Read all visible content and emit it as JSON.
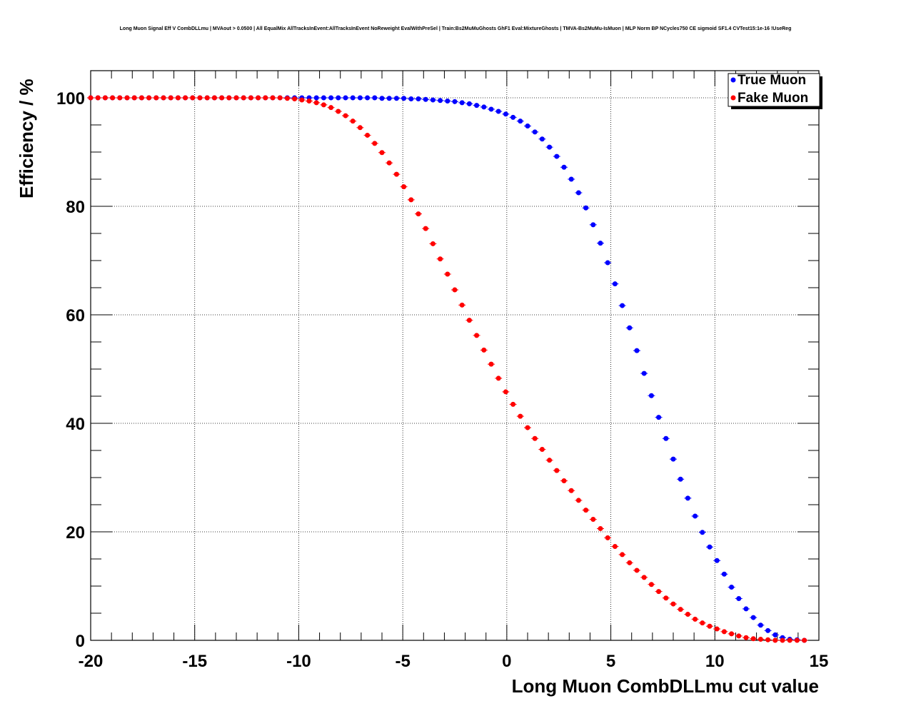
{
  "chart_data": {
    "type": "scatter",
    "title": "Long Muon Signal Eff V CombDLLmu | MVAout > 0.0500 | All EqualMix AllTracksInEvent:AllTracksInEvent NoReweight EvalWithPreSel | Train:Bs2MuMuGhosts GhF1 Eval:MixtureGhosts | TMVA-Bs2MuMu-IsMuon | MLP Norm BP NCycles750 CE sigmoid SF1.4 CVTest15:1e-16 !UseReg",
    "xlabel": "Long Muon CombDLLmu cut value",
    "ylabel": "Efficiency / %",
    "xlim": [
      -20,
      15
    ],
    "ylim": [
      0,
      105
    ],
    "xticks": [
      "-20",
      "-15",
      "-10",
      "-5",
      "0",
      "5",
      "10",
      "15"
    ],
    "yticks": [
      "0",
      "20",
      "40",
      "60",
      "80",
      "100"
    ],
    "grid": true,
    "legend_position": "top-right",
    "series": [
      {
        "name": "True Muon",
        "color": "#0000ff",
        "x": [
          -20.0,
          -19.65,
          -19.3,
          -18.95,
          -18.6,
          -18.25,
          -17.9,
          -17.55,
          -17.2,
          -16.85,
          -16.5,
          -16.15,
          -15.8,
          -15.45,
          -15.1,
          -14.75,
          -14.4,
          -14.05,
          -13.7,
          -13.35,
          -13.0,
          -12.65,
          -12.3,
          -11.95,
          -11.6,
          -11.25,
          -10.9,
          -10.55,
          -10.2,
          -9.85,
          -9.5,
          -9.15,
          -8.8,
          -8.45,
          -8.1,
          -7.75,
          -7.4,
          -7.05,
          -6.7,
          -6.35,
          -6.0,
          -5.65,
          -5.3,
          -4.95,
          -4.6,
          -4.25,
          -3.9,
          -3.55,
          -3.2,
          -2.85,
          -2.5,
          -2.15,
          -1.8,
          -1.45,
          -1.1,
          -0.75,
          -0.4,
          -0.05,
          0.3,
          0.65,
          1.0,
          1.35,
          1.7,
          2.05,
          2.4,
          2.75,
          3.1,
          3.45,
          3.8,
          4.15,
          4.5,
          4.85,
          5.2,
          5.55,
          5.9,
          6.25,
          6.6,
          6.95,
          7.3,
          7.65,
          8.0,
          8.35,
          8.7,
          9.05,
          9.4,
          9.75,
          10.1,
          10.45,
          10.8,
          11.15,
          11.5,
          11.85,
          12.2,
          12.55,
          12.9,
          13.25,
          13.6,
          13.95,
          14.3
        ],
        "y": [
          100.0,
          100.0,
          100.0,
          100.0,
          100.0,
          100.0,
          100.0,
          100.0,
          100.0,
          100.0,
          100.0,
          100.0,
          100.0,
          100.0,
          100.0,
          100.0,
          100.0,
          100.0,
          100.0,
          100.0,
          100.0,
          100.0,
          100.0,
          100.0,
          100.0,
          100.0,
          100.0,
          100.0,
          100.0,
          100.0,
          100.0,
          100.0,
          100.0,
          100.0,
          100.0,
          100.0,
          100.0,
          100.0,
          100.0,
          100.0,
          99.9,
          99.9,
          99.9,
          99.9,
          99.8,
          99.8,
          99.7,
          99.6,
          99.5,
          99.4,
          99.3,
          99.1,
          98.9,
          98.6,
          98.3,
          97.9,
          97.5,
          97.0,
          96.4,
          95.7,
          94.8,
          93.7,
          92.4,
          90.9,
          89.2,
          87.2,
          85.0,
          82.5,
          79.7,
          76.6,
          73.2,
          69.6,
          65.7,
          61.7,
          57.6,
          53.4,
          49.2,
          45.1,
          41.1,
          37.2,
          33.4,
          29.7,
          26.2,
          22.9,
          19.9,
          17.2,
          14.7,
          12.2,
          9.8,
          7.7,
          5.8,
          4.2,
          2.8,
          1.8,
          1.0,
          0.5,
          0.2,
          0.1,
          0.0
        ]
      },
      {
        "name": "Fake Muon",
        "color": "#ff0000",
        "x": [
          -20.0,
          -19.65,
          -19.3,
          -18.95,
          -18.6,
          -18.25,
          -17.9,
          -17.55,
          -17.2,
          -16.85,
          -16.5,
          -16.15,
          -15.8,
          -15.45,
          -15.1,
          -14.75,
          -14.4,
          -14.05,
          -13.7,
          -13.35,
          -13.0,
          -12.65,
          -12.3,
          -11.95,
          -11.6,
          -11.25,
          -10.9,
          -10.55,
          -10.2,
          -9.85,
          -9.5,
          -9.15,
          -8.8,
          -8.45,
          -8.1,
          -7.75,
          -7.4,
          -7.05,
          -6.7,
          -6.35,
          -6.0,
          -5.65,
          -5.3,
          -4.95,
          -4.6,
          -4.25,
          -3.9,
          -3.55,
          -3.2,
          -2.85,
          -2.5,
          -2.15,
          -1.8,
          -1.45,
          -1.1,
          -0.75,
          -0.4,
          -0.05,
          0.3,
          0.65,
          1.0,
          1.35,
          1.7,
          2.05,
          2.4,
          2.75,
          3.1,
          3.45,
          3.8,
          4.15,
          4.5,
          4.85,
          5.2,
          5.55,
          5.9,
          6.25,
          6.6,
          6.95,
          7.3,
          7.65,
          8.0,
          8.35,
          8.7,
          9.05,
          9.4,
          9.75,
          10.1,
          10.45,
          10.8,
          11.15,
          11.5,
          11.85,
          12.2,
          12.55,
          12.9,
          13.25,
          13.6,
          13.95,
          14.3
        ],
        "y": [
          100.0,
          100.0,
          100.0,
          100.0,
          100.0,
          100.0,
          100.0,
          100.0,
          100.0,
          100.0,
          100.0,
          100.0,
          100.0,
          100.0,
          100.0,
          100.0,
          100.0,
          100.0,
          100.0,
          100.0,
          100.0,
          100.0,
          100.0,
          100.0,
          100.0,
          100.0,
          100.0,
          99.9,
          99.8,
          99.6,
          99.4,
          99.1,
          98.7,
          98.2,
          97.5,
          96.7,
          95.7,
          94.5,
          93.1,
          91.6,
          89.9,
          88.0,
          85.9,
          83.6,
          81.2,
          78.6,
          75.9,
          73.1,
          70.3,
          67.5,
          64.6,
          61.8,
          59.0,
          56.2,
          53.5,
          50.9,
          48.3,
          45.8,
          43.5,
          41.3,
          39.2,
          37.2,
          35.2,
          33.2,
          31.3,
          29.4,
          27.6,
          25.8,
          24.0,
          22.3,
          20.6,
          18.9,
          17.3,
          15.8,
          14.3,
          12.9,
          11.6,
          10.3,
          9.0,
          7.8,
          6.7,
          5.7,
          4.8,
          3.9,
          3.2,
          2.6,
          2.1,
          1.6,
          1.2,
          0.8,
          0.5,
          0.3,
          0.2,
          0.1,
          0.0,
          0.0,
          0.0,
          0.0,
          0.0
        ]
      }
    ]
  }
}
